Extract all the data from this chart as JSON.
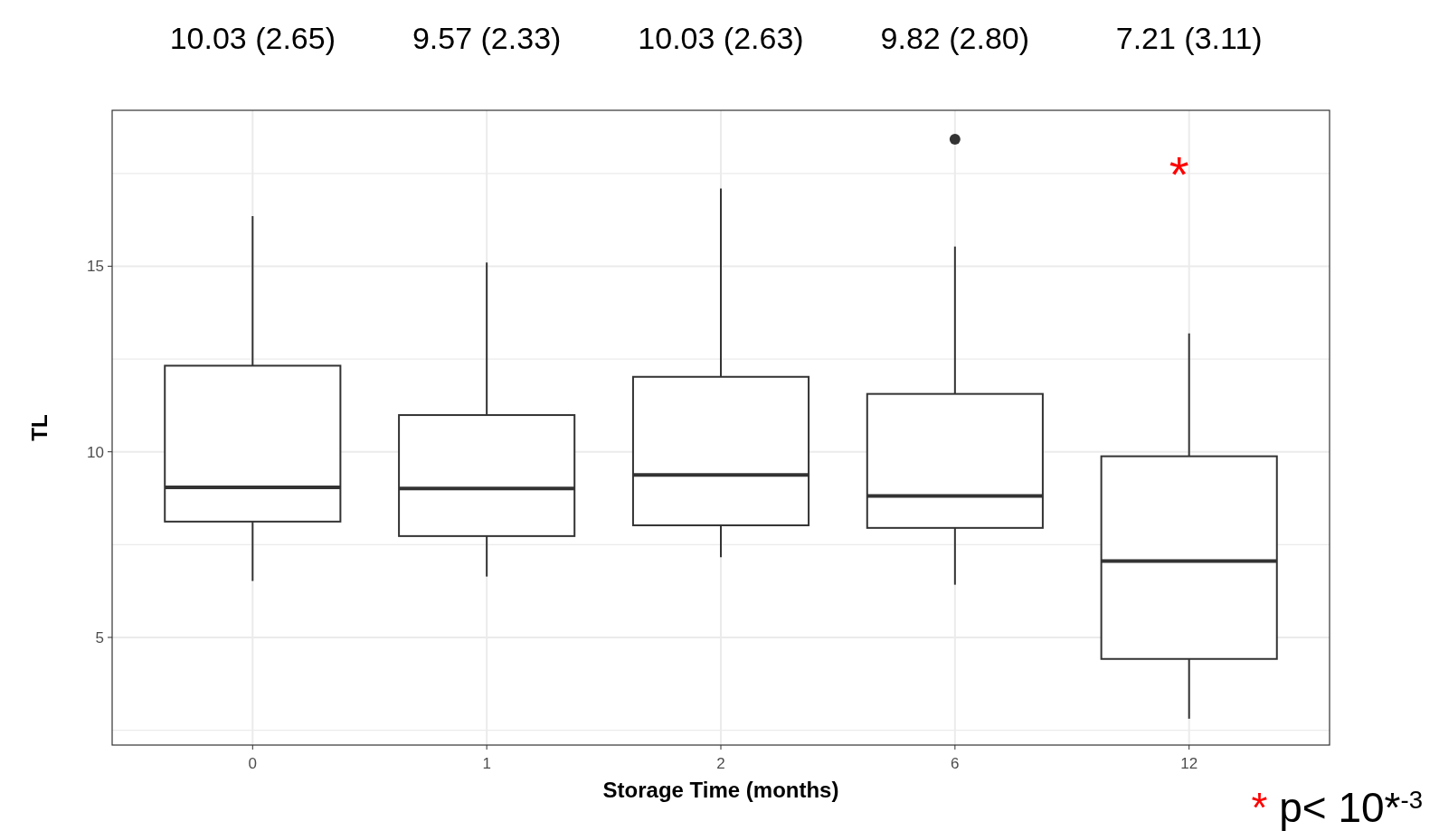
{
  "chart_data": {
    "type": "box",
    "xlabel": "Storage Time (months)",
    "ylabel": "TL",
    "categories": [
      "0",
      "1",
      "2",
      "6",
      "12"
    ],
    "boxes": [
      {
        "low": 6.52,
        "q1": 8.12,
        "median": 9.04,
        "q3": 12.32,
        "high": 16.35
      },
      {
        "low": 6.64,
        "q1": 7.73,
        "median": 9.01,
        "q3": 10.99,
        "high": 15.1
      },
      {
        "low": 7.16,
        "q1": 8.02,
        "median": 9.38,
        "q3": 12.02,
        "high": 17.09
      },
      {
        "low": 6.42,
        "q1": 7.95,
        "median": 8.81,
        "q3": 11.56,
        "high": 15.53,
        "outliers": [
          18.42
        ]
      },
      {
        "low": 2.81,
        "q1": 4.42,
        "median": 7.06,
        "q3": 9.88,
        "high": 13.19
      }
    ],
    "ylim": [
      2.1,
      19.2
    ],
    "yticks": [
      {
        "value": 2.5,
        "label": null
      },
      5,
      {
        "value": 7.5,
        "label": null
      },
      10,
      {
        "value": 12.5,
        "label": null
      },
      15,
      {
        "value": 17.5,
        "label": null
      }
    ],
    "grid": true,
    "annotations": [
      "10.03 (2.65)",
      "9.57 (2.33)",
      "10.03 (2.63)",
      "9.82 (2.80)",
      "7.21 (3.11)",
      "*",
      "* p< 10*$^{-3}$"
    ]
  }
}
